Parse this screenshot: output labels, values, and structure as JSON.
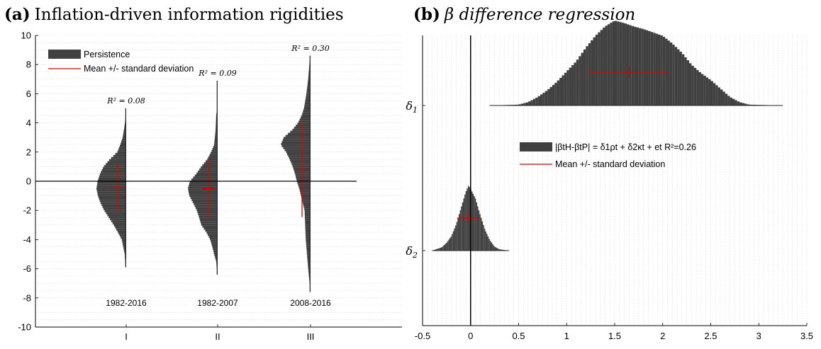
{
  "chart_data": [
    {
      "panel_label": "(a)",
      "title": "Inflation-driven information rigidities",
      "type": "violin-histogram",
      "ylim": [
        -10,
        10
      ],
      "yticks": [
        -10,
        -8,
        -6,
        -4,
        -2,
        0,
        2,
        4,
        6,
        8,
        10
      ],
      "categories": [
        "I",
        "II",
        "III"
      ],
      "legend": {
        "position": "top-left",
        "entries": [
          {
            "label": "Persistence",
            "kind": "bar",
            "color": "#404040"
          },
          {
            "label": "Mean +/- standard deviation",
            "kind": "line",
            "color": "#e00000"
          }
        ]
      },
      "grid": true,
      "series": [
        {
          "category": "I",
          "period": "1982-2016",
          "r2_label": "R² = 0.08",
          "mean": -0.45,
          "sd": 1.65,
          "min": -5.9,
          "max": 5.0,
          "profile": [
            [
              -5.9,
              0.02
            ],
            [
              -5.0,
              0.05
            ],
            [
              -4.0,
              0.15
            ],
            [
              -3.5,
              0.28
            ],
            [
              -3.0,
              0.42
            ],
            [
              -2.5,
              0.58
            ],
            [
              -2.0,
              0.74
            ],
            [
              -1.5,
              0.86
            ],
            [
              -1.0,
              0.95
            ],
            [
              -0.5,
              1.0
            ],
            [
              0.0,
              0.96
            ],
            [
              0.5,
              0.88
            ],
            [
              1.0,
              0.76
            ],
            [
              1.5,
              0.55
            ],
            [
              2.0,
              0.3
            ],
            [
              2.5,
              0.2
            ],
            [
              3.0,
              0.12
            ],
            [
              3.6,
              0.07
            ],
            [
              4.5,
              0.01
            ],
            [
              5.0,
              0.01
            ]
          ]
        },
        {
          "category": "II",
          "period": "1982-2007",
          "r2_label": "R² = 0.09",
          "mean": -0.5,
          "sd": 1.95,
          "min": -6.4,
          "max": 6.9,
          "profile": [
            [
              -6.4,
              0.01
            ],
            [
              -5.5,
              0.05
            ],
            [
              -5.0,
              0.12
            ],
            [
              -4.5,
              0.18
            ],
            [
              -4.0,
              0.25
            ],
            [
              -3.5,
              0.38
            ],
            [
              -3.0,
              0.55
            ],
            [
              -2.5,
              0.62
            ],
            [
              -2.0,
              0.7
            ],
            [
              -1.5,
              0.82
            ],
            [
              -1.0,
              0.95
            ],
            [
              -0.5,
              1.0
            ],
            [
              0.0,
              0.93
            ],
            [
              0.5,
              0.72
            ],
            [
              1.0,
              0.55
            ],
            [
              1.5,
              0.35
            ],
            [
              2.0,
              0.22
            ],
            [
              2.5,
              0.12
            ],
            [
              3.5,
              0.07
            ],
            [
              4.5,
              0.05
            ],
            [
              5.0,
              0.01
            ],
            [
              6.0,
              0.01
            ],
            [
              6.9,
              0.01
            ]
          ]
        },
        {
          "category": "III",
          "period": "2008-2016",
          "r2_label": "R² = 0.30",
          "mean": 0.8,
          "sd": 3.25,
          "min": -7.6,
          "max": 8.6,
          "profile": [
            [
              -7.6,
              0.01
            ],
            [
              -7.0,
              0.03
            ],
            [
              -6.0,
              0.08
            ],
            [
              -5.0,
              0.12
            ],
            [
              -4.0,
              0.16
            ],
            [
              -3.0,
              0.18
            ],
            [
              -2.0,
              0.2
            ],
            [
              -1.5,
              0.26
            ],
            [
              -1.0,
              0.32
            ],
            [
              -0.5,
              0.38
            ],
            [
              0.0,
              0.46
            ],
            [
              0.5,
              0.52
            ],
            [
              1.0,
              0.6
            ],
            [
              1.5,
              0.7
            ],
            [
              2.0,
              0.82
            ],
            [
              2.5,
              1.0
            ],
            [
              3.0,
              0.9
            ],
            [
              3.5,
              0.62
            ],
            [
              4.0,
              0.42
            ],
            [
              4.5,
              0.3
            ],
            [
              5.0,
              0.22
            ],
            [
              6.0,
              0.14
            ],
            [
              7.0,
              0.08
            ],
            [
              8.0,
              0.04
            ],
            [
              8.6,
              0.01
            ]
          ]
        }
      ]
    },
    {
      "panel_label": "(b)",
      "title": "β difference regression",
      "type": "horizontal-histogram",
      "xlim": [
        -0.5,
        3.5
      ],
      "xticks": [
        -0.5,
        0,
        0.5,
        1,
        1.5,
        2,
        2.5,
        3,
        3.5
      ],
      "categories": [
        "δ1",
        "δ2"
      ],
      "legend": {
        "position": "center",
        "entries": [
          {
            "label": "|βtH-βtP| = δ1ρt + δ2κt + et  R²=0.26",
            "kind": "bar",
            "color": "#404040"
          },
          {
            "label": "Mean +/- standard deviation",
            "kind": "line",
            "color": "#e00000"
          }
        ]
      },
      "grid": true,
      "series": [
        {
          "name": "δ1",
          "mean": 1.65,
          "sd": 0.42,
          "min": 0.2,
          "max": 3.25,
          "profile": [
            [
              0.2,
              0.0
            ],
            [
              0.5,
              0.01
            ],
            [
              0.6,
              0.04
            ],
            [
              0.7,
              0.1
            ],
            [
              0.8,
              0.18
            ],
            [
              0.9,
              0.28
            ],
            [
              1.0,
              0.4
            ],
            [
              1.1,
              0.52
            ],
            [
              1.2,
              0.68
            ],
            [
              1.3,
              0.82
            ],
            [
              1.4,
              0.93
            ],
            [
              1.5,
              1.0
            ],
            [
              1.6,
              0.97
            ],
            [
              1.7,
              0.93
            ],
            [
              1.8,
              0.9
            ],
            [
              1.9,
              0.86
            ],
            [
              2.0,
              0.82
            ],
            [
              2.1,
              0.73
            ],
            [
              2.2,
              0.62
            ],
            [
              2.3,
              0.48
            ],
            [
              2.4,
              0.38
            ],
            [
              2.5,
              0.3
            ],
            [
              2.6,
              0.2
            ],
            [
              2.7,
              0.1
            ],
            [
              2.8,
              0.04
            ],
            [
              2.9,
              0.01
            ],
            [
              3.25,
              0.0
            ]
          ]
        },
        {
          "name": "δ2",
          "mean": -0.02,
          "sd": 0.12,
          "min": -0.4,
          "max": 0.4,
          "profile": [
            [
              -0.4,
              0.0
            ],
            [
              -0.3,
              0.05
            ],
            [
              -0.25,
              0.12
            ],
            [
              -0.2,
              0.22
            ],
            [
              -0.15,
              0.4
            ],
            [
              -0.1,
              0.65
            ],
            [
              -0.05,
              0.9
            ],
            [
              -0.02,
              1.0
            ],
            [
              0.0,
              0.95
            ],
            [
              0.05,
              0.8
            ],
            [
              0.1,
              0.55
            ],
            [
              0.15,
              0.32
            ],
            [
              0.2,
              0.16
            ],
            [
              0.25,
              0.06
            ],
            [
              0.3,
              0.02
            ],
            [
              0.4,
              0.0
            ]
          ]
        }
      ]
    }
  ]
}
